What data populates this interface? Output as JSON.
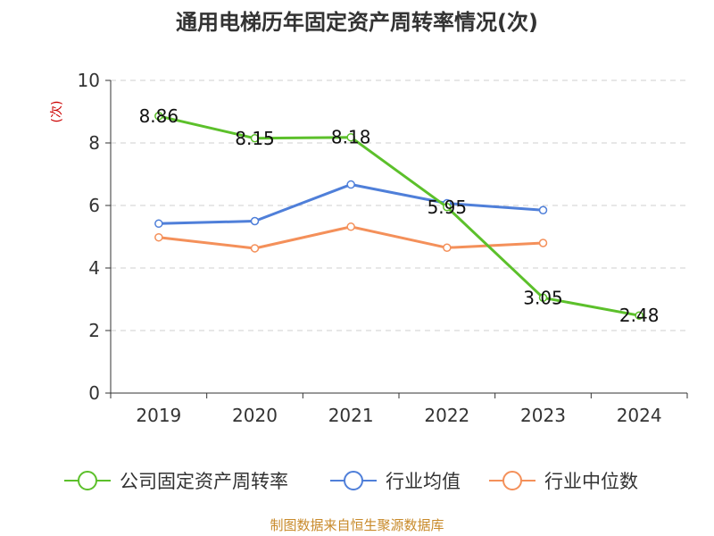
{
  "chart_data": {
    "type": "line",
    "title": "通用电梯历年固定资产周转率情况(次)",
    "ylabel": "(次)",
    "xlabel": "",
    "ylim": [
      0,
      10
    ],
    "yticks": [
      "0",
      "2",
      "4",
      "6",
      "8",
      "10"
    ],
    "categories": [
      "2019",
      "2020",
      "2021",
      "2022",
      "2023",
      "2024"
    ],
    "series": [
      {
        "name": "公司固定资产周转率",
        "color": "#5cc02b",
        "values": [
          8.86,
          8.15,
          8.18,
          5.95,
          3.05,
          2.48
        ],
        "labels": [
          "8.86",
          "8.15",
          "8.18",
          "5.95",
          "3.05",
          "2.48"
        ]
      },
      {
        "name": "行业均值",
        "color": "#4f7fd9",
        "values": [
          5.42,
          5.5,
          6.67,
          6.07,
          5.85,
          null
        ]
      },
      {
        "name": "行业中位数",
        "color": "#f4905a",
        "values": [
          4.98,
          4.63,
          5.32,
          4.65,
          4.8,
          null
        ]
      }
    ],
    "grid": true,
    "legend_position": "bottom"
  },
  "source": "制图数据来自恒生聚源数据库"
}
